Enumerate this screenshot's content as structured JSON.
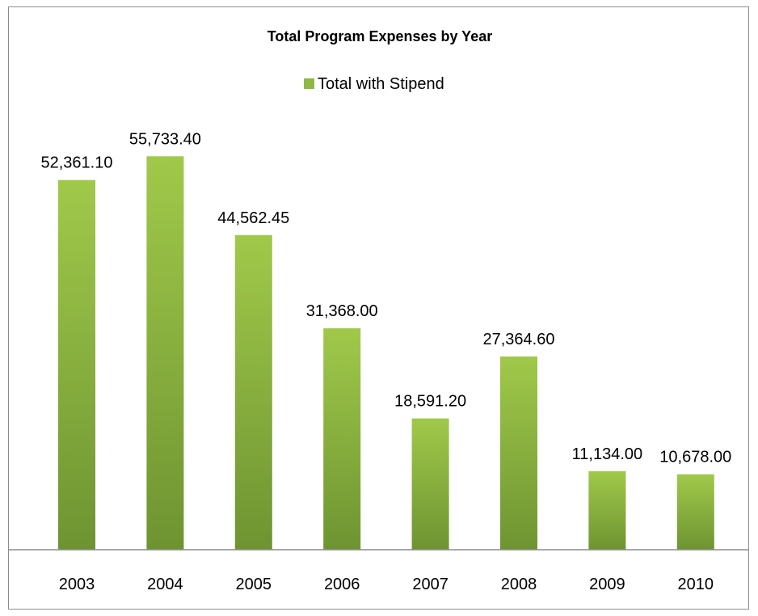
{
  "chart_data": {
    "type": "bar",
    "title": "Total Program Expenses by Year",
    "xlabel": "",
    "ylabel": "",
    "categories": [
      "2003",
      "2004",
      "2005",
      "2006",
      "2007",
      "2008",
      "2009",
      "2010"
    ],
    "series": [
      {
        "name": "Total with Stipend",
        "values": [
          52361.1,
          55733.4,
          44562.45,
          31368.0,
          18591.2,
          27364.6,
          11134.0,
          10678.0
        ],
        "labels": [
          "52,361.10",
          "55,733.40",
          "44,562.45",
          "31,368.00",
          "18,591.20",
          "27,364.60",
          "11,134.00",
          "10,678.00"
        ]
      }
    ],
    "ylim": [
      0,
      60000
    ],
    "grid": false,
    "legend": "top",
    "colors": {
      "bar_top": "#a0c94a",
      "bar_bottom": "#6e9432",
      "axis": "#8c8c8c",
      "text": "#000000"
    }
  }
}
